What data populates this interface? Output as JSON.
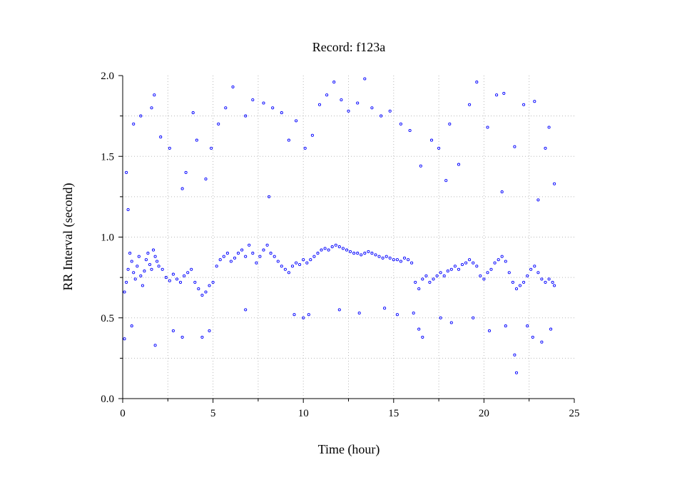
{
  "chart_data": {
    "type": "scatter",
    "title": "Record:  f123a",
    "xlabel": "Time (hour)",
    "ylabel": "RR Interval (second)",
    "xlim": [
      0,
      25
    ],
    "ylim": [
      0,
      2
    ],
    "xticks": [
      0,
      5,
      10,
      15,
      20,
      25
    ],
    "xtick_labels": [
      "0",
      "5",
      "10",
      "15",
      "20",
      "25"
    ],
    "yticks": [
      0.0,
      0.5,
      1.0,
      1.5,
      2.0
    ],
    "ytick_labels": [
      "0.0",
      "0.5",
      "1.0",
      "1.5",
      "2.0"
    ],
    "grid": true,
    "marker_color": "#0000ff",
    "series": [
      {
        "points": [
          [
            0.1,
            0.66
          ],
          [
            0.2,
            0.72
          ],
          [
            0.3,
            0.8
          ],
          [
            0.4,
            0.9
          ],
          [
            0.5,
            0.85
          ],
          [
            0.6,
            0.78
          ],
          [
            0.7,
            0.74
          ],
          [
            0.8,
            0.82
          ],
          [
            0.9,
            0.88
          ],
          [
            1.0,
            0.76
          ],
          [
            1.1,
            0.7
          ],
          [
            1.2,
            0.79
          ],
          [
            1.3,
            0.86
          ],
          [
            1.4,
            0.9
          ],
          [
            1.5,
            0.83
          ],
          [
            1.6,
            0.8
          ],
          [
            1.7,
            0.92
          ],
          [
            1.8,
            0.88
          ],
          [
            1.9,
            0.85
          ],
          [
            2.0,
            0.82
          ],
          [
            2.2,
            0.8
          ],
          [
            2.4,
            0.75
          ],
          [
            2.6,
            0.73
          ],
          [
            2.8,
            0.77
          ],
          [
            3.0,
            0.74
          ],
          [
            3.2,
            0.72
          ],
          [
            3.4,
            0.76
          ],
          [
            3.6,
            0.78
          ],
          [
            3.8,
            0.8
          ],
          [
            4.0,
            0.72
          ],
          [
            4.2,
            0.68
          ],
          [
            4.4,
            0.64
          ],
          [
            4.6,
            0.66
          ],
          [
            4.8,
            0.7
          ],
          [
            5.0,
            0.72
          ],
          [
            5.2,
            0.82
          ],
          [
            5.4,
            0.86
          ],
          [
            5.6,
            0.88
          ],
          [
            5.8,
            0.9
          ],
          [
            6.0,
            0.85
          ],
          [
            6.2,
            0.87
          ],
          [
            6.4,
            0.9
          ],
          [
            6.6,
            0.92
          ],
          [
            6.8,
            0.88
          ],
          [
            7.0,
            0.95
          ],
          [
            7.2,
            0.9
          ],
          [
            7.4,
            0.84
          ],
          [
            7.6,
            0.88
          ],
          [
            7.8,
            0.92
          ],
          [
            8.0,
            0.95
          ],
          [
            8.2,
            0.9
          ],
          [
            8.4,
            0.88
          ],
          [
            8.6,
            0.85
          ],
          [
            8.8,
            0.82
          ],
          [
            9.0,
            0.8
          ],
          [
            9.2,
            0.78
          ],
          [
            9.4,
            0.82
          ],
          [
            9.6,
            0.84
          ],
          [
            9.8,
            0.83
          ],
          [
            10.0,
            0.86
          ],
          [
            10.2,
            0.84
          ],
          [
            10.4,
            0.86
          ],
          [
            10.6,
            0.88
          ],
          [
            10.8,
            0.9
          ],
          [
            11.0,
            0.92
          ],
          [
            11.2,
            0.93
          ],
          [
            11.4,
            0.92
          ],
          [
            11.6,
            0.94
          ],
          [
            11.8,
            0.95
          ],
          [
            12.0,
            0.94
          ],
          [
            12.2,
            0.93
          ],
          [
            12.4,
            0.92
          ],
          [
            12.6,
            0.91
          ],
          [
            12.8,
            0.9
          ],
          [
            13.0,
            0.9
          ],
          [
            13.2,
            0.89
          ],
          [
            13.4,
            0.9
          ],
          [
            13.6,
            0.91
          ],
          [
            13.8,
            0.9
          ],
          [
            14.0,
            0.89
          ],
          [
            14.2,
            0.88
          ],
          [
            14.4,
            0.87
          ],
          [
            14.6,
            0.88
          ],
          [
            14.8,
            0.87
          ],
          [
            15.0,
            0.86
          ],
          [
            15.2,
            0.86
          ],
          [
            15.4,
            0.85
          ],
          [
            15.6,
            0.87
          ],
          [
            15.8,
            0.86
          ],
          [
            16.0,
            0.84
          ],
          [
            16.2,
            0.72
          ],
          [
            16.4,
            0.68
          ],
          [
            16.6,
            0.74
          ],
          [
            16.8,
            0.76
          ],
          [
            17.0,
            0.72
          ],
          [
            17.2,
            0.74
          ],
          [
            17.4,
            0.76
          ],
          [
            17.6,
            0.78
          ],
          [
            17.8,
            0.76
          ],
          [
            18.0,
            0.79
          ],
          [
            18.2,
            0.8
          ],
          [
            18.4,
            0.82
          ],
          [
            18.6,
            0.8
          ],
          [
            18.8,
            0.83
          ],
          [
            19.0,
            0.84
          ],
          [
            19.2,
            0.86
          ],
          [
            19.4,
            0.84
          ],
          [
            19.6,
            0.82
          ],
          [
            19.8,
            0.76
          ],
          [
            20.0,
            0.74
          ],
          [
            20.2,
            0.78
          ],
          [
            20.4,
            0.8
          ],
          [
            20.6,
            0.84
          ],
          [
            20.8,
            0.86
          ],
          [
            21.0,
            0.88
          ],
          [
            21.2,
            0.85
          ],
          [
            21.4,
            0.78
          ],
          [
            21.6,
            0.72
          ],
          [
            21.8,
            0.68
          ],
          [
            22.0,
            0.7
          ],
          [
            22.2,
            0.72
          ],
          [
            22.4,
            0.76
          ],
          [
            22.6,
            0.8
          ],
          [
            22.8,
            0.82
          ],
          [
            23.0,
            0.78
          ],
          [
            23.2,
            0.74
          ],
          [
            23.4,
            0.72
          ],
          [
            23.6,
            0.74
          ],
          [
            23.8,
            0.72
          ],
          [
            23.9,
            0.7
          ],
          [
            0.3,
            1.17
          ],
          [
            0.6,
            1.7
          ],
          [
            1.0,
            1.75
          ],
          [
            1.6,
            1.8
          ],
          [
            1.75,
            1.88
          ],
          [
            2.1,
            1.62
          ],
          [
            2.6,
            1.55
          ],
          [
            3.5,
            1.4
          ],
          [
            3.9,
            1.77
          ],
          [
            4.1,
            1.6
          ],
          [
            4.6,
            1.36
          ],
          [
            4.9,
            1.55
          ],
          [
            5.3,
            1.7
          ],
          [
            5.7,
            1.8
          ],
          [
            6.1,
            1.93
          ],
          [
            6.8,
            1.75
          ],
          [
            7.2,
            1.85
          ],
          [
            7.8,
            1.83
          ],
          [
            8.3,
            1.8
          ],
          [
            8.8,
            1.77
          ],
          [
            9.2,
            1.6
          ],
          [
            9.6,
            1.72
          ],
          [
            10.1,
            1.55
          ],
          [
            10.5,
            1.63
          ],
          [
            10.9,
            1.82
          ],
          [
            11.3,
            1.88
          ],
          [
            11.7,
            1.96
          ],
          [
            12.1,
            1.85
          ],
          [
            12.5,
            1.78
          ],
          [
            13.0,
            1.83
          ],
          [
            13.4,
            1.98
          ],
          [
            13.8,
            1.8
          ],
          [
            14.3,
            1.75
          ],
          [
            14.8,
            1.78
          ],
          [
            15.4,
            1.7
          ],
          [
            15.9,
            1.66
          ],
          [
            16.5,
            1.44
          ],
          [
            17.1,
            1.6
          ],
          [
            17.5,
            1.55
          ],
          [
            18.1,
            1.7
          ],
          [
            18.6,
            1.45
          ],
          [
            19.2,
            1.82
          ],
          [
            19.6,
            1.96
          ],
          [
            20.2,
            1.68
          ],
          [
            20.7,
            1.88
          ],
          [
            21.1,
            1.89
          ],
          [
            21.7,
            1.56
          ],
          [
            22.2,
            1.82
          ],
          [
            22.8,
            1.84
          ],
          [
            23.4,
            1.55
          ],
          [
            23.6,
            1.68
          ],
          [
            23.9,
            1.33
          ],
          [
            0.2,
            1.4
          ],
          [
            3.3,
            1.3
          ],
          [
            8.1,
            1.25
          ],
          [
            17.9,
            1.35
          ],
          [
            21.0,
            1.28
          ],
          [
            23.0,
            1.23
          ],
          [
            0.1,
            0.37
          ],
          [
            0.5,
            0.45
          ],
          [
            1.8,
            0.33
          ],
          [
            2.8,
            0.42
          ],
          [
            3.3,
            0.38
          ],
          [
            4.4,
            0.38
          ],
          [
            4.8,
            0.42
          ],
          [
            6.8,
            0.55
          ],
          [
            9.5,
            0.52
          ],
          [
            10.0,
            0.5
          ],
          [
            10.3,
            0.52
          ],
          [
            12.0,
            0.55
          ],
          [
            13.1,
            0.53
          ],
          [
            14.5,
            0.56
          ],
          [
            15.2,
            0.52
          ],
          [
            16.1,
            0.53
          ],
          [
            16.4,
            0.43
          ],
          [
            16.6,
            0.38
          ],
          [
            17.6,
            0.5
          ],
          [
            18.2,
            0.47
          ],
          [
            19.4,
            0.5
          ],
          [
            20.3,
            0.42
          ],
          [
            21.2,
            0.45
          ],
          [
            21.7,
            0.27
          ],
          [
            21.8,
            0.16
          ],
          [
            22.4,
            0.45
          ],
          [
            22.7,
            0.38
          ],
          [
            23.2,
            0.35
          ],
          [
            23.7,
            0.43
          ]
        ]
      }
    ]
  }
}
